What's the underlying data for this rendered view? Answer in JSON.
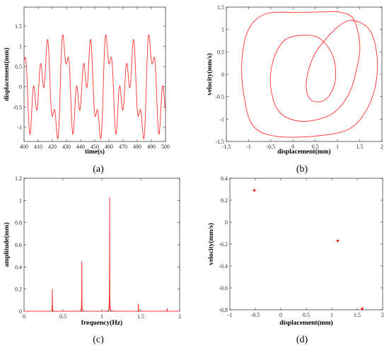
{
  "chart_data": [
    {
      "id": "a",
      "type": "line",
      "caption": "(a)",
      "xlabel": "time(s)",
      "ylabel": "displacement(mm)",
      "xlim": [
        400,
        500
      ],
      "ylim": [
        -1.35,
        1.97
      ],
      "xticks": [
        400,
        410,
        420,
        430,
        440,
        450,
        460,
        470,
        480,
        490,
        500
      ],
      "yticks": [
        -1,
        -0.5,
        0,
        0.5,
        1,
        1.5
      ],
      "series": [
        {
          "color": "#ff3030",
          "formula": "y = 0.78*sin(2*pi*x/15.2) + 0.48*sin(2*pi*x/15.2*3) + 0.42*sin(2*pi*x/15.2*3/2)",
          "x_range": [
            400,
            500
          ]
        }
      ]
    },
    {
      "id": "b",
      "type": "line",
      "caption": "(b)",
      "xlabel": "displacement(mm)",
      "ylabel": "velocity(mm/s)",
      "xlim": [
        -1.5,
        2
      ],
      "ylim": [
        -1.5,
        1.5
      ],
      "xticks": [
        -1.5,
        -1,
        -0.5,
        0,
        0.5,
        1,
        1.5,
        2
      ],
      "yticks": [
        -1.5,
        -1,
        -0.5,
        0,
        0.5,
        1,
        1.5
      ],
      "series": [
        {
          "color": "#ff3030",
          "points": [
            [
              1.0,
              1.4
            ],
            [
              0.2,
              1.38
            ],
            [
              -0.6,
              1.35
            ],
            [
              -1.0,
              1.0
            ],
            [
              -1.15,
              0.3
            ],
            [
              -1.1,
              -0.5
            ],
            [
              -0.9,
              -1.15
            ],
            [
              -0.4,
              -1.38
            ],
            [
              0.5,
              -1.38
            ],
            [
              1.3,
              -1.2
            ],
            [
              1.75,
              -0.6
            ],
            [
              1.9,
              0.2
            ],
            [
              1.75,
              0.95
            ],
            [
              1.35,
              1.2
            ],
            [
              1.0,
              1.05
            ],
            [
              0.55,
              0.55
            ],
            [
              0.35,
              0.1
            ],
            [
              0.3,
              -0.35
            ],
            [
              0.45,
              -0.6
            ],
            [
              0.75,
              -0.55
            ],
            [
              0.95,
              -0.15
            ],
            [
              0.9,
              0.4
            ],
            [
              0.6,
              0.8
            ],
            [
              0.2,
              0.87
            ],
            [
              -0.2,
              0.75
            ],
            [
              -0.45,
              0.3
            ],
            [
              -0.5,
              -0.3
            ],
            [
              -0.3,
              -0.85
            ],
            [
              0.2,
              -1.05
            ],
            [
              0.85,
              -0.9
            ],
            [
              1.25,
              -0.45
            ],
            [
              1.45,
              0.2
            ],
            [
              1.5,
              0.7
            ],
            [
              1.35,
              1.25
            ],
            [
              1.0,
              1.4
            ]
          ]
        }
      ]
    },
    {
      "id": "c",
      "type": "line",
      "caption": "(c)",
      "xlabel": "frequency(Hz)",
      "ylabel": "amplitude(mm)",
      "xlim": [
        0,
        2
      ],
      "ylim": [
        0,
        1.2
      ],
      "xticks": [
        0,
        0.5,
        1,
        1.5,
        2
      ],
      "yticks": [
        0,
        0.2,
        0.4,
        0.6,
        0.8,
        1,
        1.2
      ],
      "peaks": [
        {
          "f": 0.364,
          "a": 0.2
        },
        {
          "f": 0.742,
          "a": 0.45
        },
        {
          "f": 1.1,
          "a": 1.03
        },
        {
          "f": 1.47,
          "a": 0.065
        },
        {
          "f": 1.84,
          "a": 0.025
        }
      ]
    },
    {
      "id": "d",
      "type": "scatter",
      "caption": "(d)",
      "xlabel": "displacement(mm)",
      "ylabel": "velocity(mm/s)",
      "xlim": [
        -1,
        2
      ],
      "ylim": [
        -0.8,
        0.4
      ],
      "xticks": [
        -1,
        -0.5,
        0,
        0.5,
        1,
        1.5,
        2
      ],
      "yticks": [
        -0.8,
        -0.6,
        -0.4,
        -0.2,
        0,
        0.2,
        0.4
      ],
      "points": [
        [
          -0.52,
          0.29
        ],
        [
          1.12,
          -0.17
        ],
        [
          1.6,
          -0.79
        ]
      ]
    }
  ]
}
